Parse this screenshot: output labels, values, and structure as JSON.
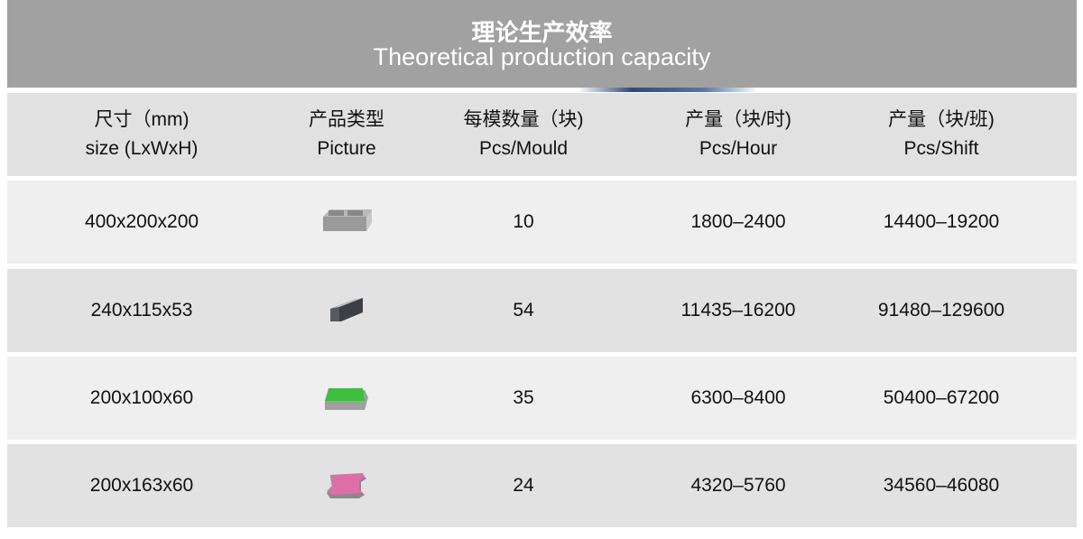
{
  "title": {
    "cn": "理论生产效率",
    "en": "Theoretical production capacity"
  },
  "headers": [
    {
      "cn": "尺寸（mm)",
      "en": "size (LxWxH)"
    },
    {
      "cn": "产品类型",
      "en": "Picture"
    },
    {
      "cn": "每模数量（块)",
      "en": "Pcs/Mould"
    },
    {
      "cn": "产量（块/时)",
      "en": "Pcs/Hour"
    },
    {
      "cn": "产量（块/班)",
      "en": "Pcs/Shift"
    }
  ],
  "rows": [
    {
      "size": "400x200x200",
      "picture": "hollow-block-icon",
      "mould": "10",
      "hour": "1800–2400",
      "shift": "14400–19200"
    },
    {
      "size": "240x115x53",
      "picture": "solid-brick-icon",
      "mould": "54",
      "hour": "11435–16200",
      "shift": "91480–129600"
    },
    {
      "size": "200x100x60",
      "picture": "green-paver-icon",
      "mould": "35",
      "hour": "6300–8400",
      "shift": "50400–67200"
    },
    {
      "size": "200x163x60",
      "picture": "pink-interlock-paver-icon",
      "mould": "24",
      "hour": "4320–5760",
      "shift": "34560–46080"
    }
  ]
}
